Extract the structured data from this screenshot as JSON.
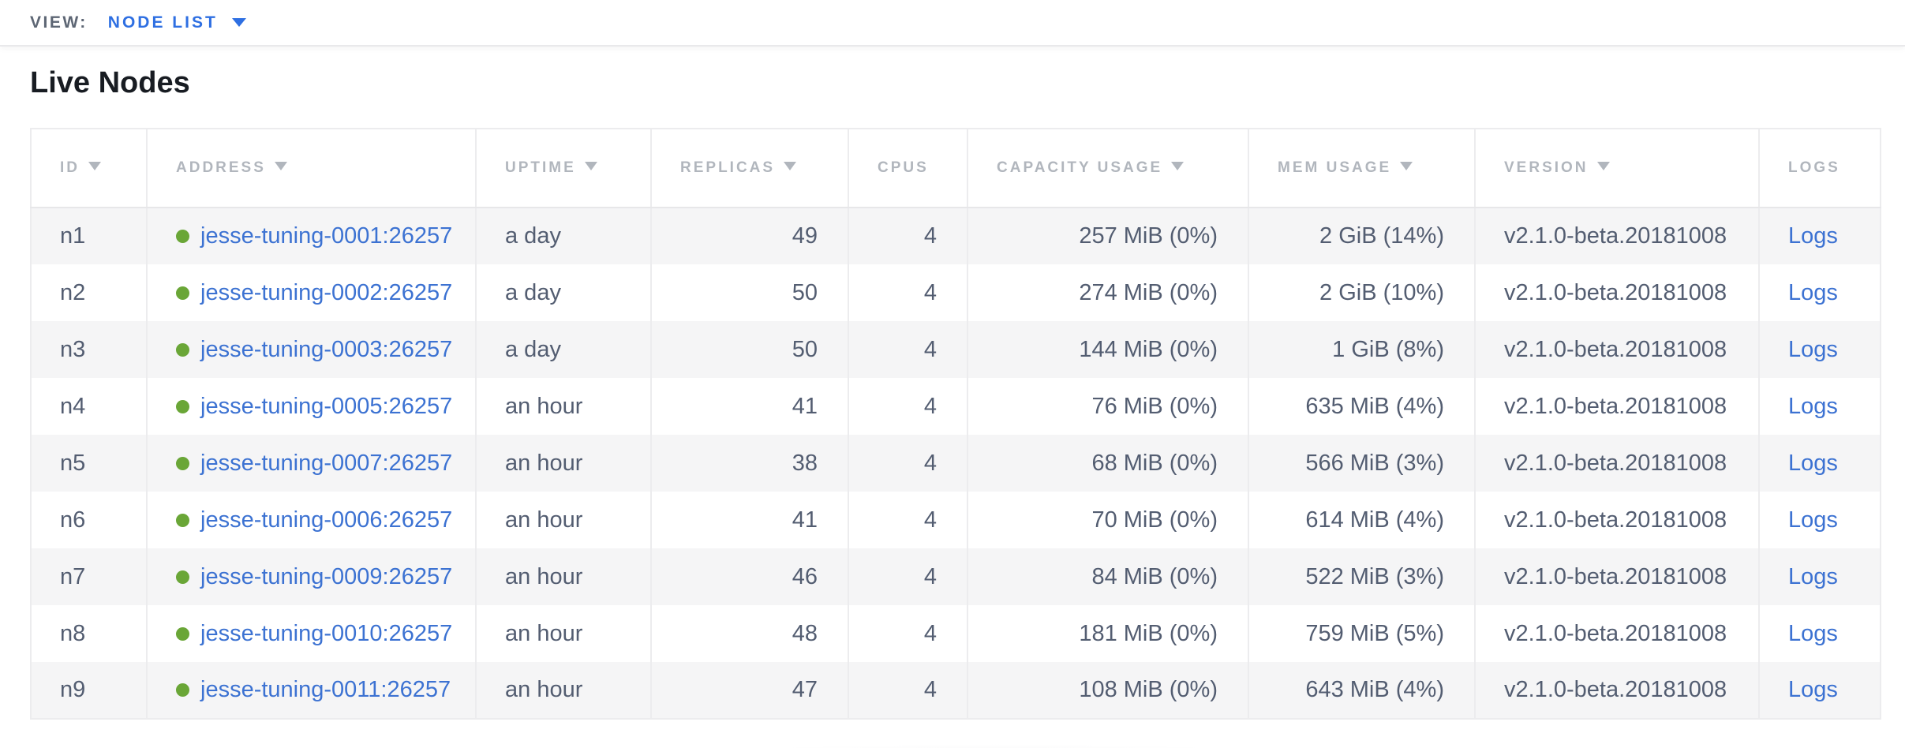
{
  "topbar": {
    "view_label": "VIEW:",
    "view_value": "NODE LIST"
  },
  "page": {
    "title": "Live Nodes"
  },
  "colors": {
    "link_blue": "#3c72d2",
    "view_selector_blue": "#2e6fe2",
    "node_status_green": "#6aa637",
    "header_text": "#b1b6bd",
    "body_text": "#535d71",
    "row_stripe": "#f5f5f6"
  },
  "table": {
    "columns": [
      {
        "key": "id",
        "label": "ID",
        "sortable": true,
        "align": "left"
      },
      {
        "key": "address",
        "label": "ADDRESS",
        "sortable": true,
        "align": "left"
      },
      {
        "key": "uptime",
        "label": "UPTIME",
        "sortable": true,
        "align": "left"
      },
      {
        "key": "replicas",
        "label": "REPLICAS",
        "sortable": true,
        "align": "right"
      },
      {
        "key": "cpus",
        "label": "CPUS",
        "sortable": false,
        "align": "right"
      },
      {
        "key": "capacity",
        "label": "CAPACITY USAGE",
        "sortable": true,
        "align": "right"
      },
      {
        "key": "mem",
        "label": "MEM USAGE",
        "sortable": true,
        "align": "right"
      },
      {
        "key": "version",
        "label": "VERSION",
        "sortable": true,
        "align": "left"
      },
      {
        "key": "logs",
        "label": "LOGS",
        "sortable": false,
        "align": "left"
      }
    ],
    "rows": [
      {
        "id": "n1",
        "address": "jesse-tuning-0001:26257",
        "uptime": "a day",
        "replicas": "49",
        "cpus": "4",
        "capacity": "257 MiB (0%)",
        "mem": "2 GiB (14%)",
        "version": "v2.1.0-beta.20181008",
        "logs": "Logs"
      },
      {
        "id": "n2",
        "address": "jesse-tuning-0002:26257",
        "uptime": "a day",
        "replicas": "50",
        "cpus": "4",
        "capacity": "274 MiB (0%)",
        "mem": "2 GiB (10%)",
        "version": "v2.1.0-beta.20181008",
        "logs": "Logs"
      },
      {
        "id": "n3",
        "address": "jesse-tuning-0003:26257",
        "uptime": "a day",
        "replicas": "50",
        "cpus": "4",
        "capacity": "144 MiB (0%)",
        "mem": "1 GiB (8%)",
        "version": "v2.1.0-beta.20181008",
        "logs": "Logs"
      },
      {
        "id": "n4",
        "address": "jesse-tuning-0005:26257",
        "uptime": "an hour",
        "replicas": "41",
        "cpus": "4",
        "capacity": "76 MiB (0%)",
        "mem": "635 MiB (4%)",
        "version": "v2.1.0-beta.20181008",
        "logs": "Logs"
      },
      {
        "id": "n5",
        "address": "jesse-tuning-0007:26257",
        "uptime": "an hour",
        "replicas": "38",
        "cpus": "4",
        "capacity": "68 MiB (0%)",
        "mem": "566 MiB (3%)",
        "version": "v2.1.0-beta.20181008",
        "logs": "Logs"
      },
      {
        "id": "n6",
        "address": "jesse-tuning-0006:26257",
        "uptime": "an hour",
        "replicas": "41",
        "cpus": "4",
        "capacity": "70 MiB (0%)",
        "mem": "614 MiB (4%)",
        "version": "v2.1.0-beta.20181008",
        "logs": "Logs"
      },
      {
        "id": "n7",
        "address": "jesse-tuning-0009:26257",
        "uptime": "an hour",
        "replicas": "46",
        "cpus": "4",
        "capacity": "84 MiB (0%)",
        "mem": "522 MiB (3%)",
        "version": "v2.1.0-beta.20181008",
        "logs": "Logs"
      },
      {
        "id": "n8",
        "address": "jesse-tuning-0010:26257",
        "uptime": "an hour",
        "replicas": "48",
        "cpus": "4",
        "capacity": "181 MiB (0%)",
        "mem": "759 MiB (5%)",
        "version": "v2.1.0-beta.20181008",
        "logs": "Logs"
      },
      {
        "id": "n9",
        "address": "jesse-tuning-0011:26257",
        "uptime": "an hour",
        "replicas": "47",
        "cpus": "4",
        "capacity": "108 MiB (0%)",
        "mem": "643 MiB (4%)",
        "version": "v2.1.0-beta.20181008",
        "logs": "Logs"
      }
    ]
  }
}
